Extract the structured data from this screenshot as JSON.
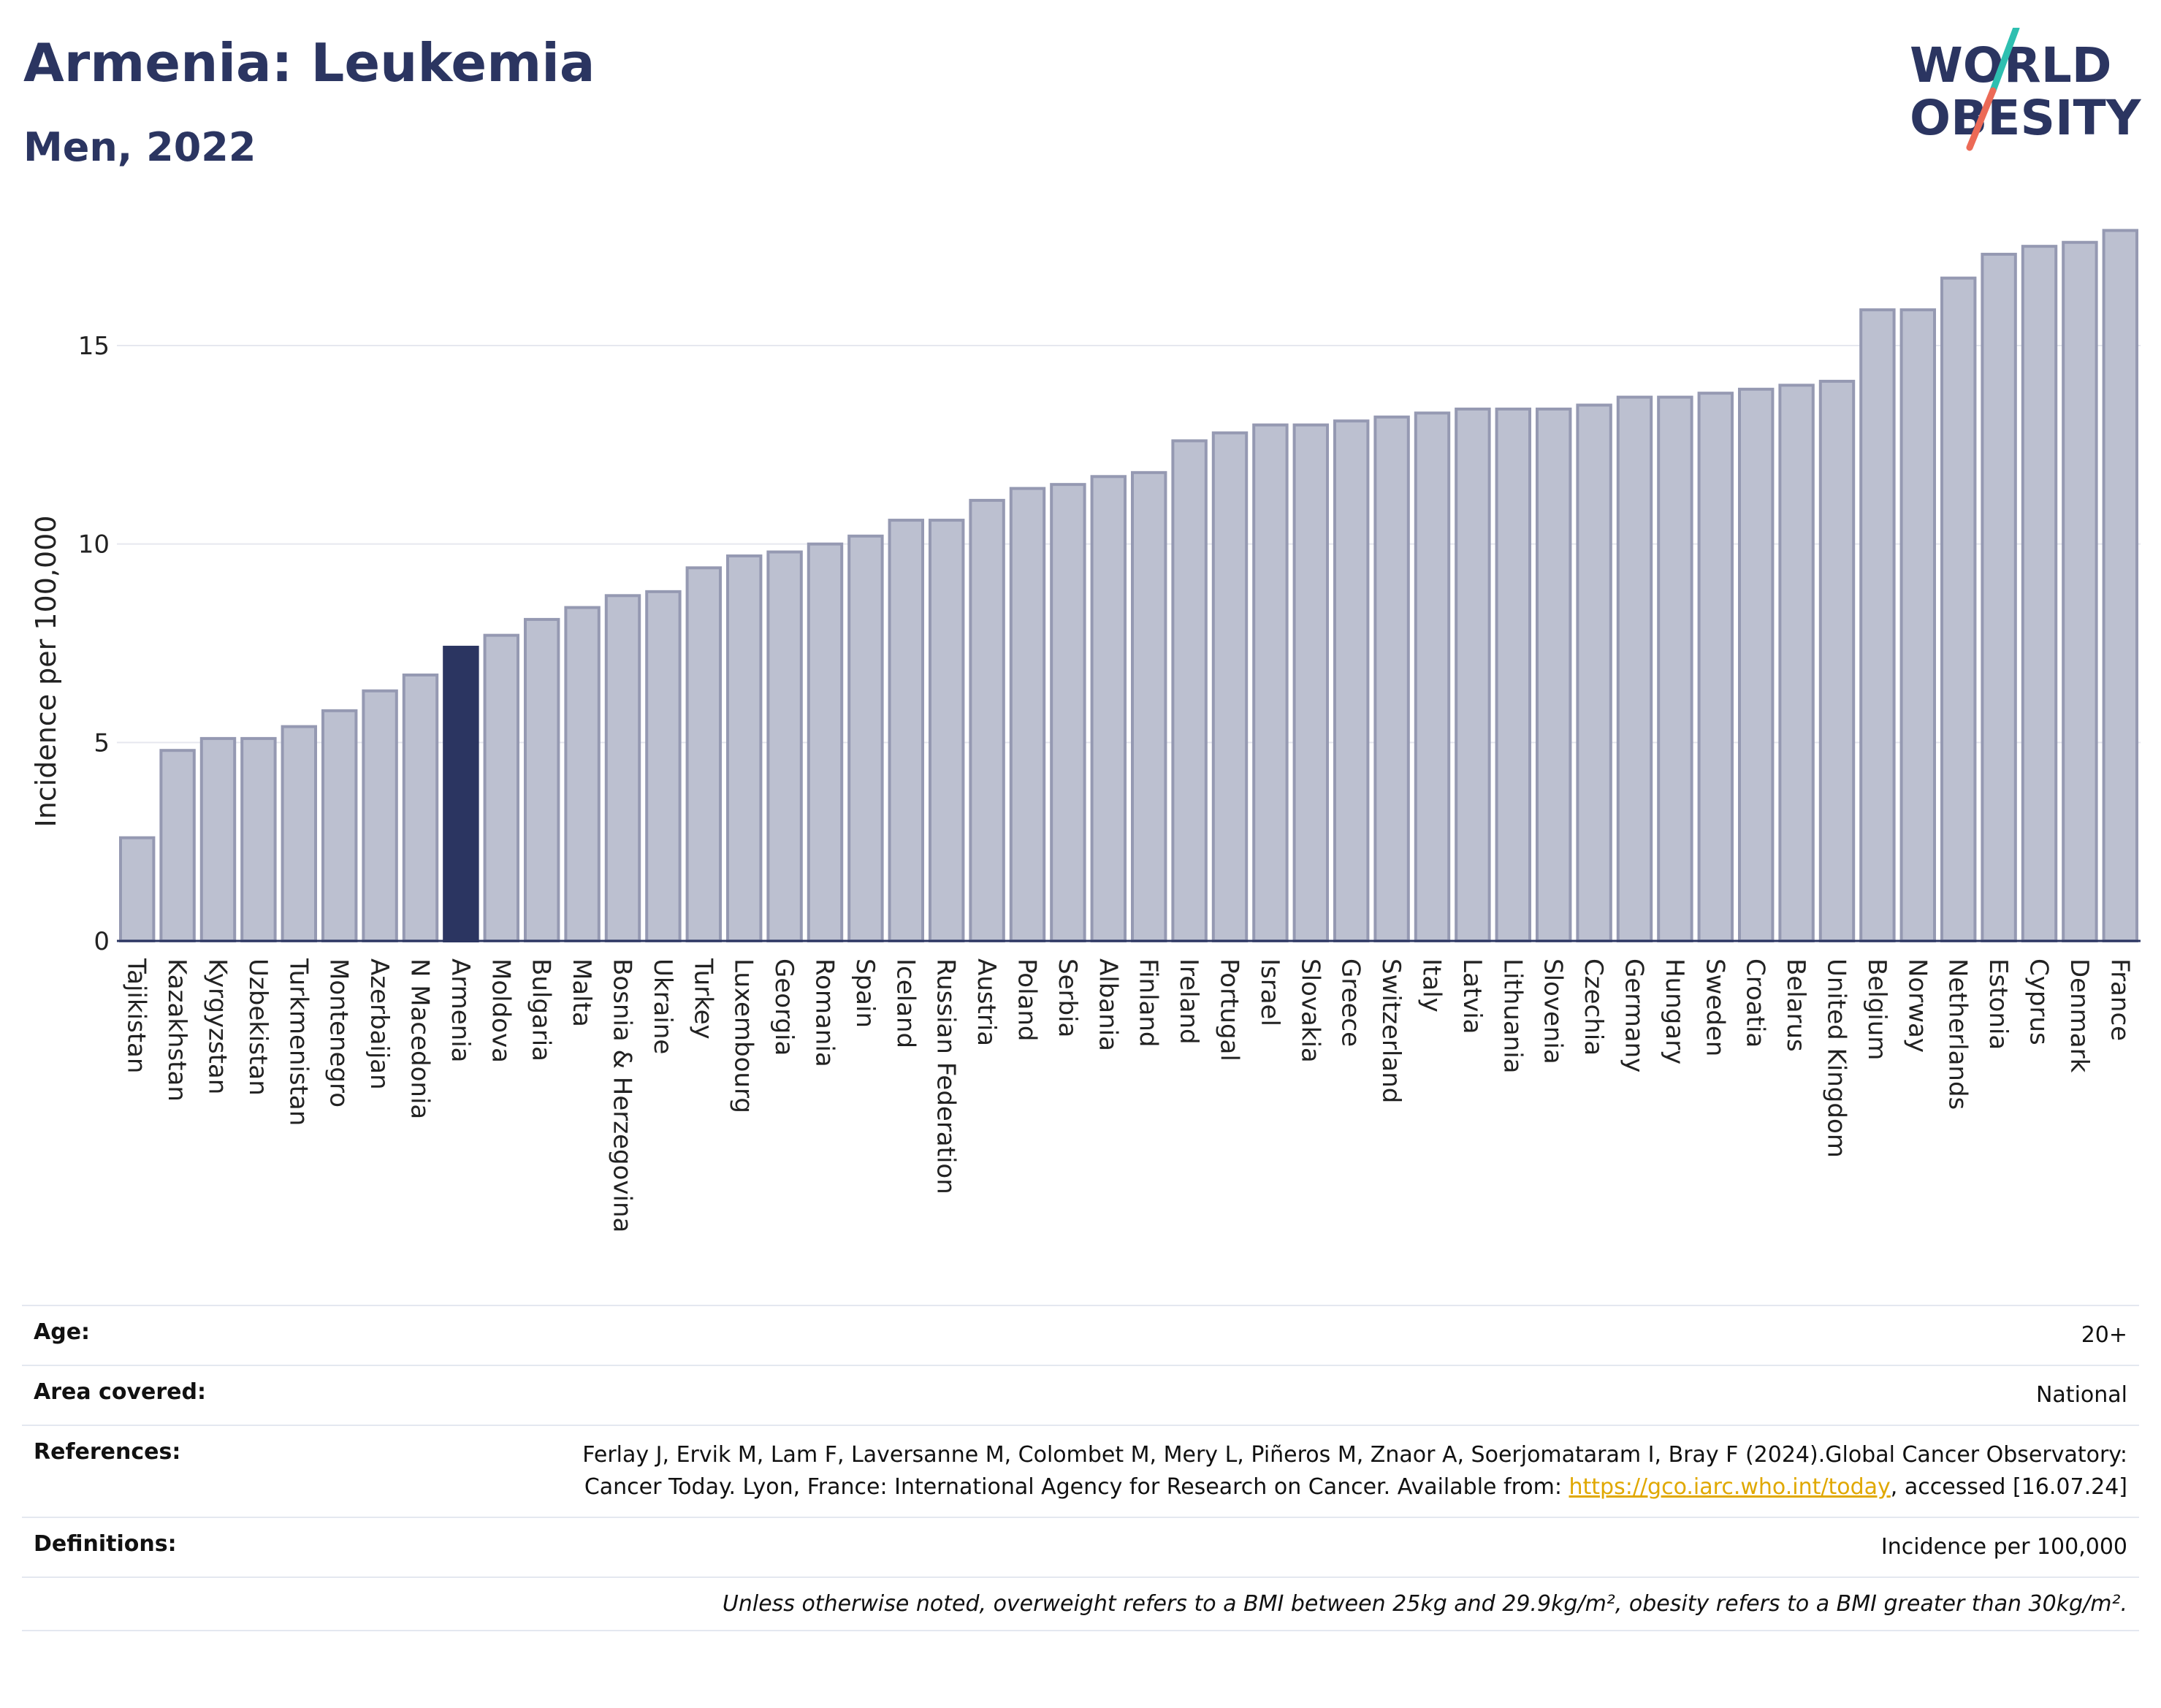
{
  "header": {
    "title": "Armenia: Leukemia",
    "subtitle": "Men, 2022",
    "logo_line1": "WORLD",
    "logo_line2": "OBESITY"
  },
  "colors": {
    "highlight": "#2b3561",
    "bar_fill": "#bcc0d0",
    "bar_stroke": "#9599b2",
    "logo_teal": "#2ebfb0",
    "logo_coral": "#ec6a56"
  },
  "chart_data": {
    "type": "bar",
    "title": "Armenia: Leukemia",
    "subtitle": "Men, 2022",
    "xlabel": "",
    "ylabel": "Incidence per 100,000",
    "ylim": [
      0,
      18
    ],
    "yticks": [
      0,
      5,
      10,
      15
    ],
    "grid": true,
    "highlight": "Armenia",
    "categories": [
      "Tajikistan",
      "Kazakhstan",
      "Kyrgyzstan",
      "Uzbekistan",
      "Turkmenistan",
      "Montenegro",
      "Azerbaijan",
      "N Macedonia",
      "Armenia",
      "Moldova",
      "Bulgaria",
      "Malta",
      "Bosnia & Herzegovina",
      "Ukraine",
      "Turkey",
      "Luxembourg",
      "Georgia",
      "Romania",
      "Spain",
      "Iceland",
      "Russian Federation",
      "Austria",
      "Poland",
      "Serbia",
      "Albania",
      "Finland",
      "Ireland",
      "Portugal",
      "Israel",
      "Slovakia",
      "Greece",
      "Switzerland",
      "Italy",
      "Latvia",
      "Lithuania",
      "Slovenia",
      "Czechia",
      "Germany",
      "Hungary",
      "Sweden",
      "Croatia",
      "Belarus",
      "United Kingdom",
      "Belgium",
      "Norway",
      "Netherlands",
      "Estonia",
      "Cyprus",
      "Denmark",
      "France"
    ],
    "values": [
      2.6,
      4.8,
      5.1,
      5.1,
      5.4,
      5.8,
      6.3,
      6.7,
      7.4,
      7.7,
      8.1,
      8.4,
      8.7,
      8.8,
      9.4,
      9.7,
      9.8,
      10.0,
      10.2,
      10.6,
      10.6,
      11.1,
      11.4,
      11.5,
      11.7,
      11.8,
      12.6,
      12.8,
      13.0,
      13.0,
      13.1,
      13.2,
      13.3,
      13.4,
      13.4,
      13.4,
      13.5,
      13.7,
      13.7,
      13.8,
      13.9,
      14.0,
      14.1,
      15.9,
      15.9,
      16.7,
      17.3,
      17.5,
      17.6,
      17.9
    ]
  },
  "info": {
    "age_label": "Age:",
    "age_value": "20+",
    "area_label": "Area covered:",
    "area_value": "National",
    "references_label": "References:",
    "references_text": "Ferlay J, Ervik M, Lam F, Laversanne M, Colombet M, Mery L, Piñeros M, Znaor A, Soerjomataram I, Bray F (2024).Global Cancer Observatory: Cancer Today. Lyon, France: International Agency for Research on Cancer. Available from:",
    "references_link": "https://gco.iarc.who.int/today",
    "references_suffix": ", accessed [16.07.24]",
    "definitions_label": "Definitions:",
    "definitions_value": "Incidence per 100,000",
    "note": "Unless otherwise noted, overweight refers to a BMI between 25kg and 29.9kg/m², obesity refers to a BMI greater than 30kg/m²."
  }
}
